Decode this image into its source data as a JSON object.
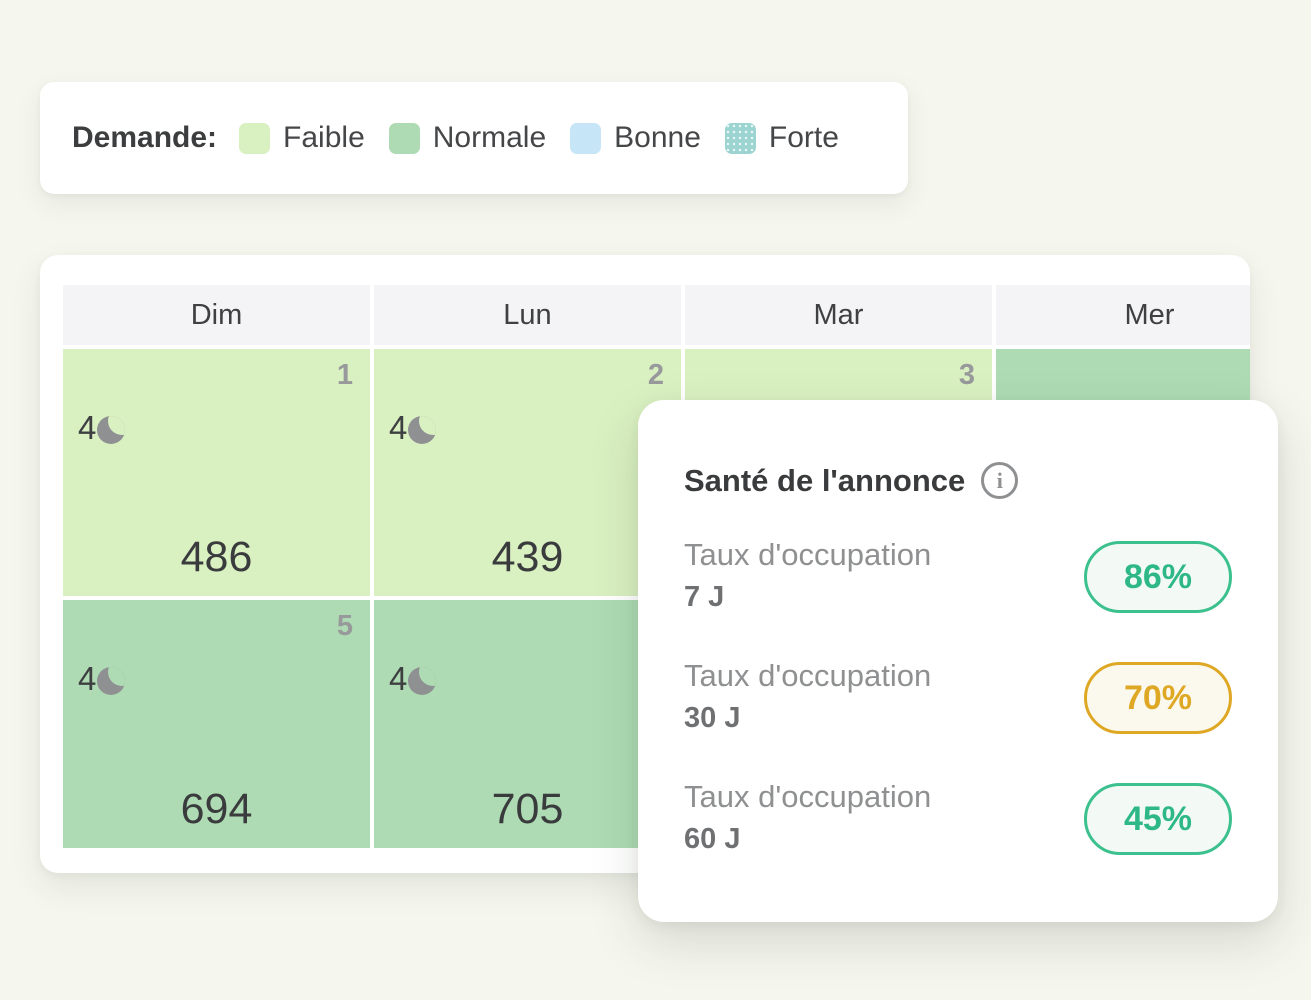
{
  "colors": {
    "page-bg": "#f5f6ee",
    "header-bg": "#f4f4f6",
    "faible": "#d9f0c1",
    "normale": "#aedbb3",
    "bonne": "#c6e5f6",
    "forte": "#9cd4d1",
    "icon-gray": "#8f9092",
    "daynum-gray": "#98999b",
    "label-gray": "#8f9091",
    "good": "#3cc18e",
    "good-text": "#2db885",
    "good-bg": "#f3faf6",
    "warning": "#dfa824",
    "warning-bg": "#fbf8ee"
  },
  "legend": {
    "title": "Demande:",
    "items": [
      {
        "key": "faible",
        "label": "Faible"
      },
      {
        "key": "normale",
        "label": "Normale"
      },
      {
        "key": "bonne",
        "label": "Bonne"
      },
      {
        "key": "forte",
        "label": "Forte"
      }
    ]
  },
  "calendar": {
    "day_headers": [
      "Dim",
      "Lun",
      "Mar",
      "Mer"
    ],
    "cells": [
      {
        "day": "1",
        "min_stay": "4",
        "price": "486",
        "demand": "faible"
      },
      {
        "day": "2",
        "min_stay": "4",
        "price": "439",
        "demand": "faible"
      },
      {
        "day": "3",
        "min_stay": "",
        "price": "",
        "demand": "faible"
      },
      {
        "day": "",
        "min_stay": "",
        "price": "",
        "demand": "normale"
      },
      {
        "day": "5",
        "min_stay": "4",
        "price": "694",
        "demand": "normale"
      },
      {
        "day": "",
        "min_stay": "4",
        "price": "705",
        "demand": "normale"
      },
      {
        "day": "",
        "min_stay": "",
        "price": "",
        "demand": "normale"
      },
      {
        "day": "",
        "min_stay": "",
        "price": "",
        "demand": "normale"
      }
    ]
  },
  "health_panel": {
    "title": "Santé de l'annonce",
    "info_icon": "i",
    "rows": [
      {
        "label": "Taux d'occupation",
        "period": "7 J",
        "value": "86%",
        "status": "good"
      },
      {
        "label": "Taux d'occupation",
        "period": "30 J",
        "value": "70%",
        "status": "warning"
      },
      {
        "label": "Taux d'occupation",
        "period": "60 J",
        "value": "45%",
        "status": "good"
      }
    ]
  }
}
